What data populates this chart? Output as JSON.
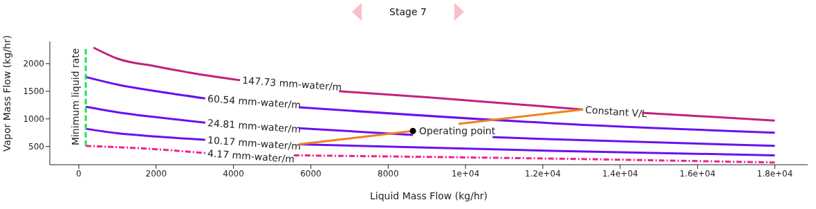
{
  "chart_data": {
    "type": "line",
    "title": "Stage 7",
    "xlabel": "Liquid Mass Flow (kg/hr)",
    "ylabel": "Vapor Mass Flow (kg/hr)",
    "xlim": [
      -750,
      18850
    ],
    "ylim": [
      170,
      2400
    ],
    "xticks": [
      0,
      2000,
      4000,
      6000,
      8000,
      {
        "value": 10000,
        "label": "1e+04"
      },
      {
        "value": 12000,
        "label": "1.2e+04"
      },
      {
        "value": 14000,
        "label": "1.4e+04"
      },
      {
        "value": 16000,
        "label": "1.6e+04"
      },
      {
        "value": 18000,
        "label": "1.8e+04"
      }
    ],
    "yticks": [
      500,
      1000,
      1500,
      2000
    ],
    "grid": false,
    "legend": false,
    "marker": "none",
    "series": [
      {
        "name": "147.73 mm-water/m",
        "color": "#c0207f",
        "x": [
          380,
          1000,
          2000,
          3000,
          4170,
          5500,
          6730,
          9000,
          13040,
          13800,
          14560,
          18000
        ],
        "values": [
          2290,
          2090,
          1950,
          1820,
          1700,
          null,
          1500,
          1390,
          1170,
          null,
          1110,
          970
        ]
      },
      {
        "name": "60.54 mm-water/m",
        "color": "#6a10f0",
        "x": [
          180,
          1000,
          2000,
          3270,
          4500,
          5690,
          12270,
          18000
        ],
        "values": [
          1760,
          1620,
          1500,
          1370,
          null,
          1210,
          920,
          750
        ]
      },
      {
        "name": "24.81 mm-water/m",
        "color": "#6a10f0",
        "x": [
          180,
          1000,
          2000,
          3270,
          4500,
          5690,
          8640,
          9700,
          10700,
          12270,
          18000
        ],
        "values": [
          1220,
          1120,
          1030,
          930,
          null,
          830,
          710,
          null,
          670,
          630,
          510
        ]
      },
      {
        "name": "10.17 mm-water/m",
        "color": "#6a10f0",
        "x": [
          180,
          1000,
          2000,
          3270,
          4500,
          5690,
          12270,
          18000
        ],
        "values": [
          820,
          740,
          680,
          620,
          null,
          540,
          420,
          340
        ]
      },
      {
        "name": "4.17 mm-water/m",
        "color": "#f0208a",
        "line_style": "dashed",
        "x": [
          180,
          2000,
          3270,
          4400,
          5560,
          12270,
          18000
        ],
        "values": [
          510,
          450,
          380,
          null,
          340,
          280,
          210
        ]
      },
      {
        "name": "Minimum liquid rate",
        "color": "#22e055",
        "line_style": "dashed",
        "x": [
          180,
          180
        ],
        "values": [
          510,
          2290
        ]
      },
      {
        "name": "Constant V/L",
        "color": "#f08020",
        "x": [
          5690,
          8640,
          9200,
          9820,
          13040
        ],
        "values": [
          540,
          780,
          null,
          910,
          1170
        ]
      },
      {
        "name": "Operating point",
        "type": "scatter",
        "color": "#000000",
        "marker": "circle",
        "x": [
          8640
        ],
        "values": [
          780
        ]
      }
    ]
  }
}
